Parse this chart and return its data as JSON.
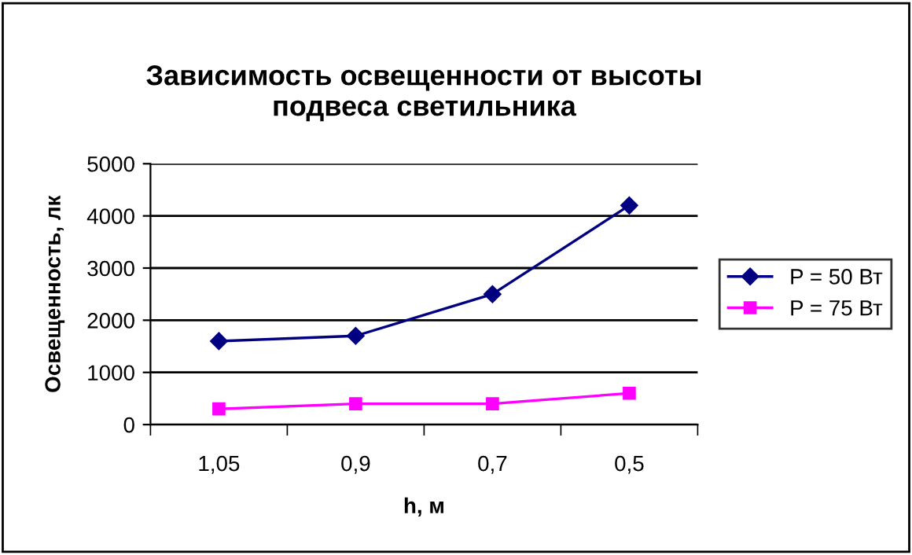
{
  "chart_data": {
    "type": "line",
    "title": "Зависимость освещенности от высоты\nподвеса светильника",
    "xlabel": "h, м",
    "ylabel": "Освещенность, лк",
    "categories": [
      "1,05",
      "0,9",
      "0,7",
      "0,5"
    ],
    "series": [
      {
        "name": "P = 50 Вт",
        "color": "#000080",
        "marker": "diamond",
        "values": [
          1600,
          1700,
          2500,
          4200
        ]
      },
      {
        "name": "P = 75 Вт",
        "color": "#ff00ff",
        "marker": "square",
        "values": [
          300,
          400,
          400,
          600
        ]
      }
    ],
    "ylim": [
      0,
      5000
    ],
    "yticks": [
      0,
      1000,
      2000,
      3000,
      4000,
      5000
    ],
    "grid": "y",
    "legend": "right",
    "line_style": "solid"
  }
}
